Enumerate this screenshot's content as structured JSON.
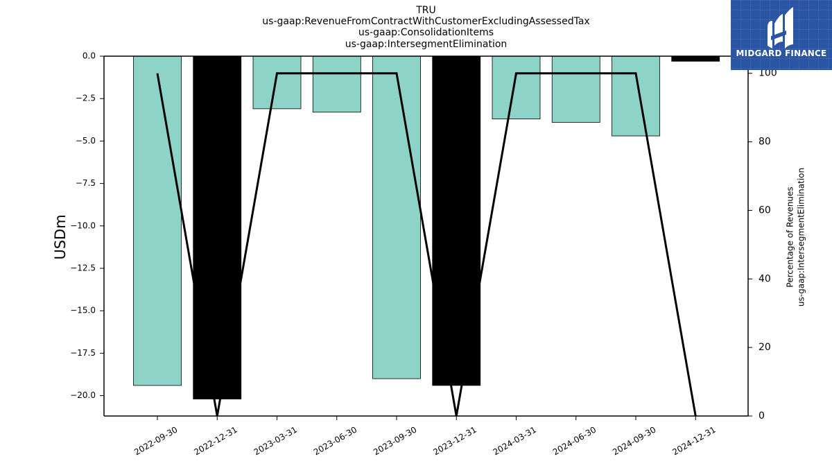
{
  "title_lines": [
    "TRU",
    "us-gaap:RevenueFromContractWithCustomerExcludingAssessedTax",
    "us-gaap:ConsolidationItems",
    "us-gaap:IntersegmentElimination"
  ],
  "logo": {
    "text": "MIDGARD FINANCE",
    "icon": "midgard-m-logo-icon",
    "background": "#2a55a3"
  },
  "colors": {
    "bar": "#8dd3c7",
    "bar_highlight": "#000000",
    "line": "#000000"
  },
  "chart_data": {
    "type": "bar",
    "categories": [
      "2022-09-30",
      "2022-12-31",
      "2023-03-31",
      "2023-06-30",
      "2023-09-30",
      "2023-12-31",
      "2024-03-31",
      "2024-06-30",
      "2024-09-30",
      "2024-12-31"
    ],
    "series": [
      {
        "values": [
          -19.4,
          -20.2,
          -3.1,
          -3.3,
          -19.0,
          -19.4,
          -3.7,
          -3.9,
          -4.7,
          -0.3
        ],
        "highlight": [
          false,
          true,
          false,
          false,
          false,
          true,
          false,
          false,
          false,
          true
        ]
      },
      {
        "type": "line",
        "axis": "right",
        "values": [
          100,
          0,
          100,
          100,
          100,
          0,
          100,
          100,
          100,
          0
        ]
      }
    ],
    "ylabel": "USDm",
    "ylabel_right": [
      "Percentage of Revenues",
      "us-gaap:IntersegmentElimination"
    ],
    "ylim": [
      -21.2,
      0
    ],
    "ylim_right": [
      0,
      105
    ],
    "yticks": [
      "0.0",
      "−2.5",
      "−5.0",
      "−7.5",
      "−10.0",
      "−12.5",
      "−15.0",
      "−17.5",
      "−20.0"
    ],
    "yticks_right": [
      "0",
      "20",
      "40",
      "60",
      "80",
      "100"
    ],
    "grid": false
  }
}
